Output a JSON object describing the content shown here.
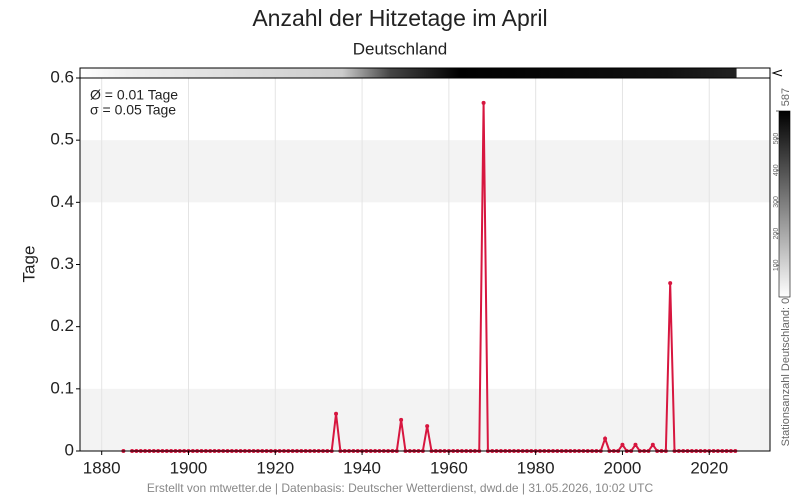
{
  "chart_data": {
    "type": "line",
    "title": "Anzahl der Hitzetage im April",
    "subtitle": "Deutschland",
    "ylabel": "Tage",
    "annotations": [
      "Ø = 0.01 Tage",
      "σ = 0.05 Tage"
    ],
    "footer": "Erstellt von mtwetter.de | Datenbasis: Deutscher Wetterdienst, dwd.de | 31.05.2026, 10:02 UTC",
    "x": [
      1885,
      1886,
      1887,
      1888,
      1889,
      1890,
      1891,
      1892,
      1893,
      1894,
      1895,
      1896,
      1897,
      1898,
      1899,
      1900,
      1901,
      1902,
      1903,
      1904,
      1905,
      1906,
      1907,
      1908,
      1909,
      1910,
      1911,
      1912,
      1913,
      1914,
      1915,
      1916,
      1917,
      1918,
      1919,
      1920,
      1921,
      1922,
      1923,
      1924,
      1925,
      1926,
      1927,
      1928,
      1929,
      1930,
      1931,
      1932,
      1933,
      1934,
      1935,
      1936,
      1937,
      1938,
      1939,
      1940,
      1941,
      1942,
      1943,
      1944,
      1945,
      1946,
      1947,
      1948,
      1949,
      1950,
      1951,
      1952,
      1953,
      1954,
      1955,
      1956,
      1957,
      1958,
      1959,
      1960,
      1961,
      1962,
      1963,
      1964,
      1965,
      1966,
      1967,
      1968,
      1969,
      1970,
      1971,
      1972,
      1973,
      1974,
      1975,
      1976,
      1977,
      1978,
      1979,
      1980,
      1981,
      1982,
      1983,
      1984,
      1985,
      1986,
      1987,
      1988,
      1989,
      1990,
      1991,
      1992,
      1993,
      1994,
      1995,
      1996,
      1997,
      1998,
      1999,
      2000,
      2001,
      2002,
      2003,
      2004,
      2005,
      2006,
      2007,
      2008,
      2009,
      2010,
      2011,
      2012,
      2013,
      2014,
      2015,
      2016,
      2017,
      2018,
      2019,
      2020,
      2021,
      2022,
      2023,
      2024,
      2025,
      2026
    ],
    "series": [
      {
        "color": "#d7163f",
        "values": [
          0,
          null,
          0,
          0,
          0,
          0,
          0,
          0,
          0,
          0,
          0,
          0,
          0,
          0,
          0,
          0,
          0,
          0,
          0,
          0,
          0,
          0,
          0,
          0,
          0,
          0,
          0,
          0,
          0,
          0,
          0,
          0,
          0,
          0,
          0,
          0,
          0,
          0,
          0,
          0,
          0,
          0,
          0,
          0,
          0,
          0,
          0,
          0,
          0,
          0.06,
          0,
          0,
          0,
          0,
          0,
          0,
          0,
          0,
          0,
          0,
          0,
          0,
          0,
          0,
          0.05,
          0,
          0,
          0,
          0,
          0,
          0.04,
          0,
          0,
          0,
          0,
          0,
          0,
          0,
          0,
          0,
          0,
          0,
          0,
          0.56,
          0,
          0,
          0,
          0,
          0,
          0,
          0,
          0,
          0,
          0,
          0,
          0,
          0,
          0,
          0,
          0,
          0,
          0,
          0,
          0,
          0,
          0,
          0,
          0,
          0,
          0,
          0,
          0.02,
          0,
          0,
          0,
          0.01,
          0,
          0,
          0.01,
          0,
          0,
          0,
          0.01,
          0,
          0,
          0,
          0.27,
          0,
          0,
          0,
          0,
          0,
          0,
          0,
          0,
          0,
          0,
          0,
          0,
          0,
          0,
          0
        ]
      }
    ],
    "xlim": [
      1875,
      2034
    ],
    "xticks": [
      1880,
      1900,
      1920,
      1940,
      1960,
      1980,
      2000,
      2020
    ],
    "ylim": [
      0,
      0.6
    ],
    "yticks": [
      0.0,
      0.1,
      0.2,
      0.3,
      0.4,
      0.5,
      0.6
    ],
    "grid": true,
    "colorbar": {
      "label": "Stationsanzahl Deutschland: 0",
      "lim": [
        0,
        587
      ],
      "ticks": [
        100,
        200,
        300,
        400,
        500,
        587
      ]
    }
  }
}
